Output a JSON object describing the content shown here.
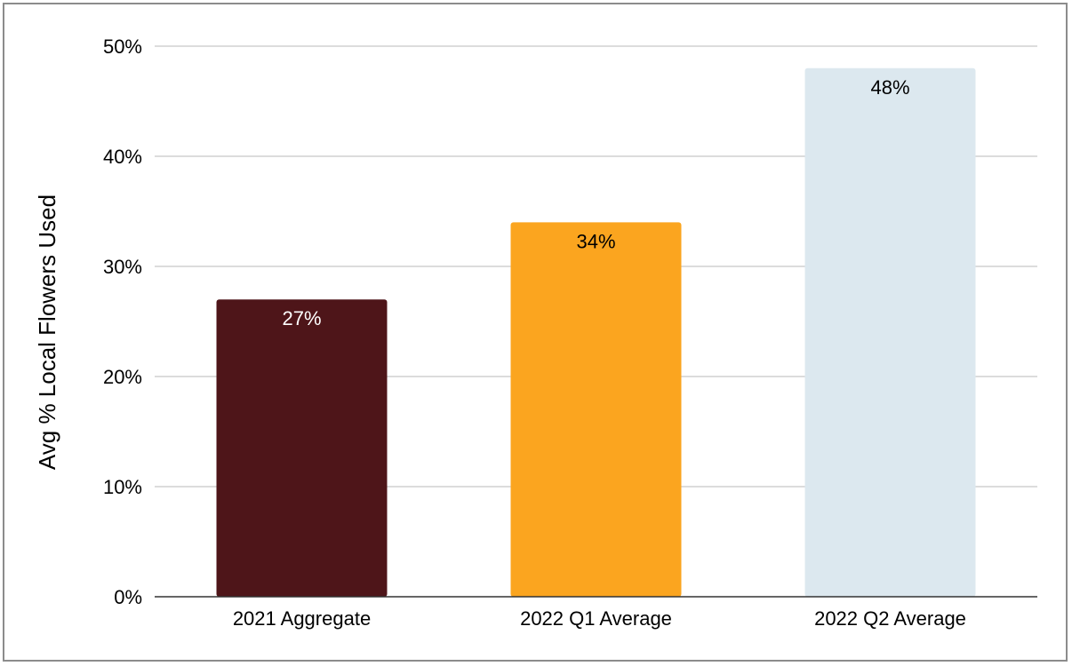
{
  "chart_data": {
    "type": "bar",
    "categories": [
      "2021 Aggregate",
      "2022 Q1 Average",
      "2022 Q2 Average"
    ],
    "values": [
      27,
      34,
      48
    ],
    "data_labels": [
      "27%",
      "34%",
      "48%"
    ],
    "bar_colors": [
      "#4e1519",
      "#fba51f",
      "#dce8ef"
    ],
    "data_label_colors": [
      "#ffffff",
      "#000000",
      "#000000"
    ],
    "title": "",
    "xlabel": "",
    "ylabel": "Avg % Local Flowers Used",
    "ylim": [
      0,
      50
    ],
    "yticks": [
      0,
      10,
      20,
      30,
      40,
      50
    ],
    "ytick_labels": [
      "0%",
      "10%",
      "20%",
      "30%",
      "40%",
      "50%"
    ],
    "grid": true,
    "legend": "none"
  }
}
